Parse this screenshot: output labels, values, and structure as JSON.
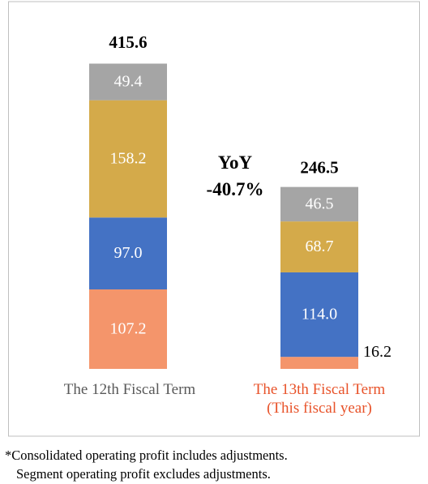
{
  "chart_data": {
    "type": "stacked_bar",
    "categories": [
      "The 12th Fiscal Term",
      "The 13th Fiscal Term\n(This fiscal year)"
    ],
    "series": [
      {
        "color": "#f4956b",
        "values": [
          107.2,
          16.2
        ]
      },
      {
        "color": "#4472c4",
        "values": [
          97.0,
          114.0
        ]
      },
      {
        "color": "#d4aa4a",
        "values": [
          158.2,
          68.7
        ]
      },
      {
        "color": "#a5a5a5",
        "values": [
          49.4,
          46.5
        ]
      }
    ],
    "value_labels": [
      [
        "107.2",
        "16.2"
      ],
      [
        "97.0",
        "114.0"
      ],
      [
        "158.2",
        "68.7"
      ],
      [
        "49.4",
        "46.5"
      ]
    ],
    "totals": [
      415.6,
      246.5
    ],
    "annotation": "YoY\n-40.7%",
    "footnotes": [
      "*Consolidated operating profit includes adjustments.",
      "Segment operating profit excludes adjustments."
    ]
  }
}
